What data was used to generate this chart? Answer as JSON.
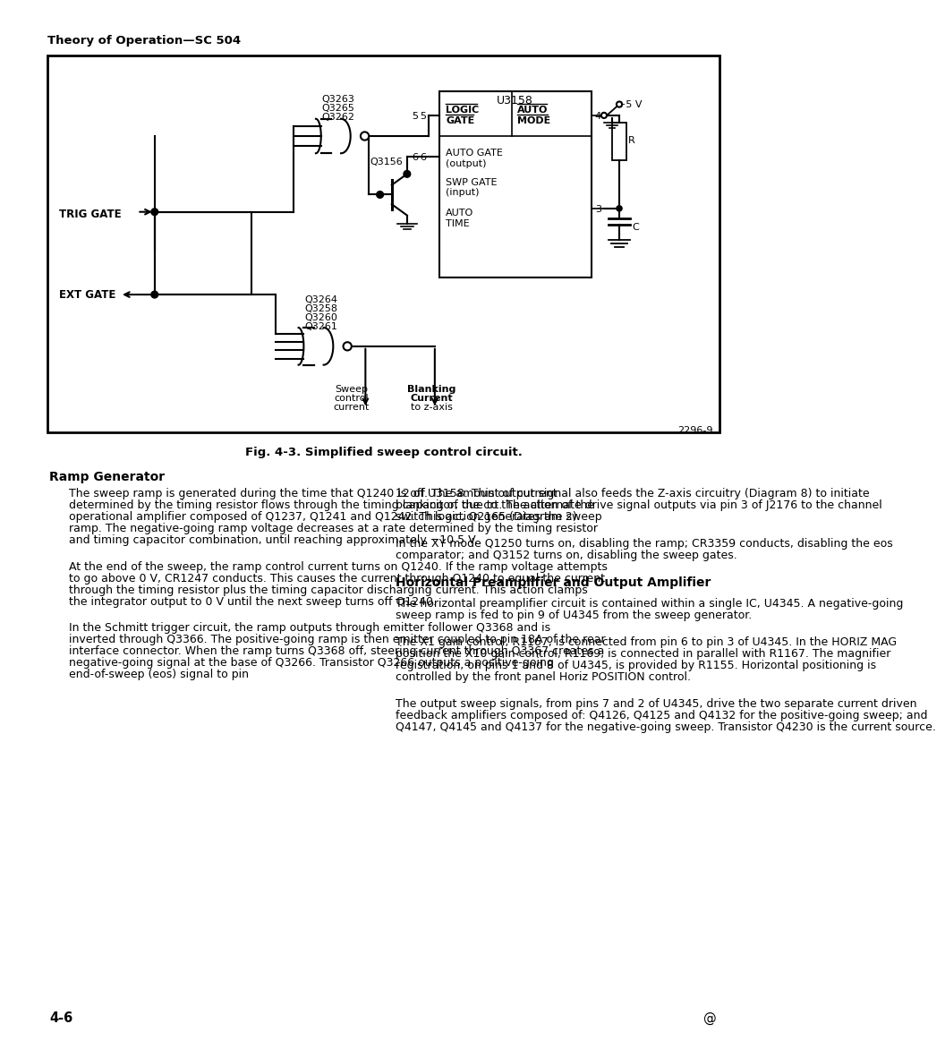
{
  "page_header": "Theory of Operation—SC 504",
  "fig_caption": "Fig. 4-3. Simplified sweep control circuit.",
  "fig_number": "2296-9",
  "page_number": "4-6",
  "section1_title": "Ramp Generator",
  "section1_para1": "The sweep ramp is generated during the time that Q1240 is off. The amount of current determined by the timing resistor flows through the timing capacitor, due to the action of the operational amplifier composed of Q1237, Q1241 and Q1242. This action generates the sweep ramp. The negative-going ramp voltage decreases at a rate determined by the timing resistor and timing capacitor combination, until reaching approximately −10.5 V.",
  "section1_para2": "At the end of the sweep, the ramp control current turns on Q1240. If the ramp voltage attempts to go above 0 V, CR1247 conducts. This causes the current through Q1240 to equal the current through the timing resistor plus the timing capacitor discharging current. This action clamps the integrator output to 0 V until the next sweep turns off Q1240.",
  "section1_para3": "In the Schmitt trigger circuit, the ramp outputs through emitter follower Q3368 and is inverted through Q3366. The positive-going ramp is then emitter coupled to pin 18A of the rear interface connector. When the ramp turns Q3368 off, steering current through Q3367 creates a negative-going signal at the base of Q3266. Transistor Q3266 outputs a positive-going end-of-sweep (eos) signal to pin",
  "section2_title": "Horizontal Preamplifier and Output Amplifier",
  "right_para1": "12 of U3158. This output signal also feeds the Z-axis circuitry (Diagram 8) to initiate blanking of the crt. The alternate drive signal outputs via pin 3 of J2176 to the channel switch logic, Q2165 (Diagram 2).",
  "right_para2": "In the XY mode Q1250 turns on, disabling the ramp; CR3359 conducts, disabling the eos comparator; and Q3152 turns on, disabling the sweep gates.",
  "right_para3": "The horizontal preamplifier circuit is contained within a single IC, U4345. A negative-going sweep ramp is fed to pin 9 of U4345 from the sweep generator.",
  "right_para4": "The X1 gain control, R1167, is connected from pin 6 to pin 3 of U4345. In the HORIZ MAG position the X10 gain control, R1169, is connected in parallel with R1167. The magnifier registration, on pins 1 and 8 of U4345, is provided by R1155. Horizontal positioning is controlled by the front panel Horiz POSITION control.",
  "right_para5": "The output sweep signals, from pins 7 and 2 of U4345, drive the two separate current driven feedback amplifiers composed of: Q4126, Q4125 and Q4132 for the positive-going sweep; and Q4147, Q4145 and Q4137 for the negative-going sweep. Transistor Q4230 is the current source.",
  "bg_color": "#ffffff",
  "lc": "#000000"
}
